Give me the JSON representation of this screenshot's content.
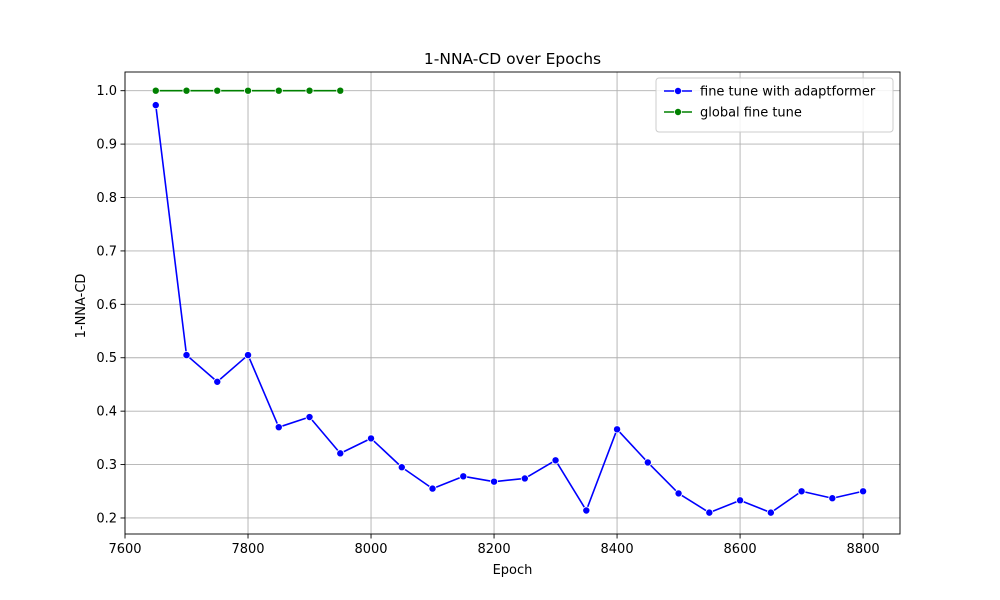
{
  "chart_data": {
    "type": "line",
    "title": "1-NNA-CD over Epochs",
    "xlabel": "Epoch",
    "ylabel": "1-NNA-CD",
    "xlim": [
      7600,
      8860
    ],
    "ylim": [
      0.17,
      1.035
    ],
    "x_ticks": [
      7600,
      7800,
      8000,
      8200,
      8400,
      8600,
      8800
    ],
    "y_ticks": [
      0.2,
      0.3,
      0.4,
      0.5,
      0.6,
      0.7,
      0.8,
      0.9,
      1.0
    ],
    "x_tick_labels": [
      "7600",
      "7800",
      "8000",
      "8200",
      "8400",
      "8600",
      "8800"
    ],
    "y_tick_labels": [
      "0.2",
      "0.3",
      "0.4",
      "0.5",
      "0.6",
      "0.7",
      "0.8",
      "0.9",
      "1.0"
    ],
    "grid": true,
    "legend_position": "top-right",
    "series": [
      {
        "name": "fine tune with adaptformer",
        "color": "#0000ff",
        "marker": "circle",
        "x": [
          7650,
          7700,
          7750,
          7800,
          7850,
          7900,
          7950,
          8000,
          8050,
          8100,
          8150,
          8200,
          8250,
          8300,
          8350,
          8400,
          8450,
          8500,
          8550,
          8600,
          8650,
          8700,
          8750,
          8800
        ],
        "y": [
          0.973,
          0.505,
          0.455,
          0.505,
          0.37,
          0.389,
          0.321,
          0.349,
          0.295,
          0.255,
          0.278,
          0.268,
          0.274,
          0.308,
          0.214,
          0.366,
          0.304,
          0.246,
          0.21,
          0.233,
          0.21,
          0.25,
          0.237,
          0.25
        ]
      },
      {
        "name": "global fine tune",
        "color": "#008000",
        "marker": "circle",
        "x": [
          7650,
          7700,
          7750,
          7800,
          7850,
          7900,
          7950
        ],
        "y": [
          1.0,
          1.0,
          1.0,
          1.0,
          1.0,
          1.0,
          1.0
        ]
      }
    ]
  }
}
